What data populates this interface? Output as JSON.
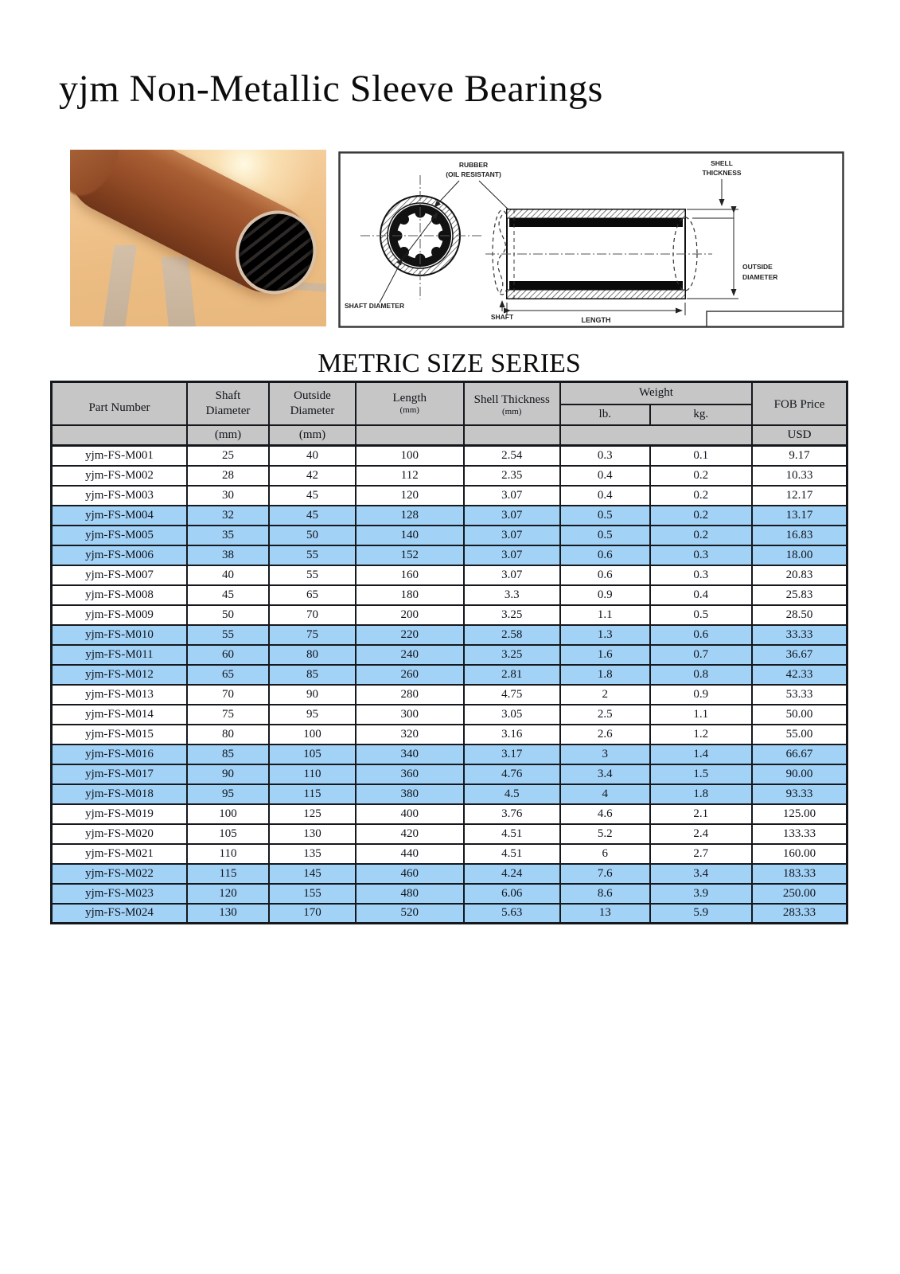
{
  "page_title": "yjm Non-Metallic Sleeve Bearings",
  "section_title": "METRIC SIZE SERIES",
  "diagram_labels": {
    "rubber_1": "RUBBER",
    "rubber_2": "(OIL RESISTANT)",
    "shell_1": "SHELL",
    "shell_2": "THICKNESS",
    "shaft_diameter": "SHAFT DIAMETER",
    "shaft": "SHAFT",
    "length": "LENGTH",
    "outside_1": "OUTSIDE",
    "outside_2": "DIAMETER"
  },
  "table": {
    "headers": {
      "part_number": "Part  Number",
      "shaft_1": "Shaft",
      "shaft_2": "Diameter",
      "outside_1": "Outside",
      "outside_2": "Diameter",
      "length": "Length",
      "shell_thickness": "Shell Thickness",
      "mm": "(mm)",
      "weight": "Weight",
      "lb": "lb.",
      "kg": "kg.",
      "fob_price": "FOB Price",
      "usd": "USD"
    },
    "rows": [
      {
        "part": "yjm-FS-M001",
        "shaft": "25",
        "outside": "40",
        "length": "100",
        "shell": "2.54",
        "lb": "0.3",
        "kg": "0.1",
        "price": "9.17",
        "highlight": false
      },
      {
        "part": "yjm-FS-M002",
        "shaft": "28",
        "outside": "42",
        "length": "112",
        "shell": "2.35",
        "lb": "0.4",
        "kg": "0.2",
        "price": "10.33",
        "highlight": false
      },
      {
        "part": "yjm-FS-M003",
        "shaft": "30",
        "outside": "45",
        "length": "120",
        "shell": "3.07",
        "lb": "0.4",
        "kg": "0.2",
        "price": "12.17",
        "highlight": false
      },
      {
        "part": "yjm-FS-M004",
        "shaft": "32",
        "outside": "45",
        "length": "128",
        "shell": "3.07",
        "lb": "0.5",
        "kg": "0.2",
        "price": "13.17",
        "highlight": true
      },
      {
        "part": "yjm-FS-M005",
        "shaft": "35",
        "outside": "50",
        "length": "140",
        "shell": "3.07",
        "lb": "0.5",
        "kg": "0.2",
        "price": "16.83",
        "highlight": true
      },
      {
        "part": "yjm-FS-M006",
        "shaft": "38",
        "outside": "55",
        "length": "152",
        "shell": "3.07",
        "lb": "0.6",
        "kg": "0.3",
        "price": "18.00",
        "highlight": true
      },
      {
        "part": "yjm-FS-M007",
        "shaft": "40",
        "outside": "55",
        "length": "160",
        "shell": "3.07",
        "lb": "0.6",
        "kg": "0.3",
        "price": "20.83",
        "highlight": false
      },
      {
        "part": "yjm-FS-M008",
        "shaft": "45",
        "outside": "65",
        "length": "180",
        "shell": "3.3",
        "lb": "0.9",
        "kg": "0.4",
        "price": "25.83",
        "highlight": false
      },
      {
        "part": "yjm-FS-M009",
        "shaft": "50",
        "outside": "70",
        "length": "200",
        "shell": "3.25",
        "lb": "1.1",
        "kg": "0.5",
        "price": "28.50",
        "highlight": false
      },
      {
        "part": "yjm-FS-M010",
        "shaft": "55",
        "outside": "75",
        "length": "220",
        "shell": "2.58",
        "lb": "1.3",
        "kg": "0.6",
        "price": "33.33",
        "highlight": true
      },
      {
        "part": "yjm-FS-M011",
        "shaft": "60",
        "outside": "80",
        "length": "240",
        "shell": "3.25",
        "lb": "1.6",
        "kg": "0.7",
        "price": "36.67",
        "highlight": true
      },
      {
        "part": "yjm-FS-M012",
        "shaft": "65",
        "outside": "85",
        "length": "260",
        "shell": "2.81",
        "lb": "1.8",
        "kg": "0.8",
        "price": "42.33",
        "highlight": true
      },
      {
        "part": "yjm-FS-M013",
        "shaft": "70",
        "outside": "90",
        "length": "280",
        "shell": "4.75",
        "lb": "2",
        "kg": "0.9",
        "price": "53.33",
        "highlight": false
      },
      {
        "part": "yjm-FS-M014",
        "shaft": "75",
        "outside": "95",
        "length": "300",
        "shell": "3.05",
        "lb": "2.5",
        "kg": "1.1",
        "price": "50.00",
        "highlight": false
      },
      {
        "part": "yjm-FS-M015",
        "shaft": "80",
        "outside": "100",
        "length": "320",
        "shell": "3.16",
        "lb": "2.6",
        "kg": "1.2",
        "price": "55.00",
        "highlight": false
      },
      {
        "part": "yjm-FS-M016",
        "shaft": "85",
        "outside": "105",
        "length": "340",
        "shell": "3.17",
        "lb": "3",
        "kg": "1.4",
        "price": "66.67",
        "highlight": true
      },
      {
        "part": "yjm-FS-M017",
        "shaft": "90",
        "outside": "110",
        "length": "360",
        "shell": "4.76",
        "lb": "3.4",
        "kg": "1.5",
        "price": "90.00",
        "highlight": true
      },
      {
        "part": "yjm-FS-M018",
        "shaft": "95",
        "outside": "115",
        "length": "380",
        "shell": "4.5",
        "lb": "4",
        "kg": "1.8",
        "price": "93.33",
        "highlight": true
      },
      {
        "part": "yjm-FS-M019",
        "shaft": "100",
        "outside": "125",
        "length": "400",
        "shell": "3.76",
        "lb": "4.6",
        "kg": "2.1",
        "price": "125.00",
        "highlight": false
      },
      {
        "part": "yjm-FS-M020",
        "shaft": "105",
        "outside": "130",
        "length": "420",
        "shell": "4.51",
        "lb": "5.2",
        "kg": "2.4",
        "price": "133.33",
        "highlight": false
      },
      {
        "part": "yjm-FS-M021",
        "shaft": "110",
        "outside": "135",
        "length": "440",
        "shell": "4.51",
        "lb": "6",
        "kg": "2.7",
        "price": "160.00",
        "highlight": false
      },
      {
        "part": "yjm-FS-M022",
        "shaft": "115",
        "outside": "145",
        "length": "460",
        "shell": "4.24",
        "lb": "7.6",
        "kg": "3.4",
        "price": "183.33",
        "highlight": true
      },
      {
        "part": "yjm-FS-M023",
        "shaft": "120",
        "outside": "155",
        "length": "480",
        "shell": "6.06",
        "lb": "8.6",
        "kg": "3.9",
        "price": "250.00",
        "highlight": true
      },
      {
        "part": "yjm-FS-M024",
        "shaft": "130",
        "outside": "170",
        "length": "520",
        "shell": "5.63",
        "lb": "13",
        "kg": "5.9",
        "price": "283.33",
        "highlight": true
      }
    ]
  },
  "colors": {
    "highlight_row": "#a3d2f7",
    "header_bg": "#c6c6c6",
    "table_border": "#15181d"
  }
}
